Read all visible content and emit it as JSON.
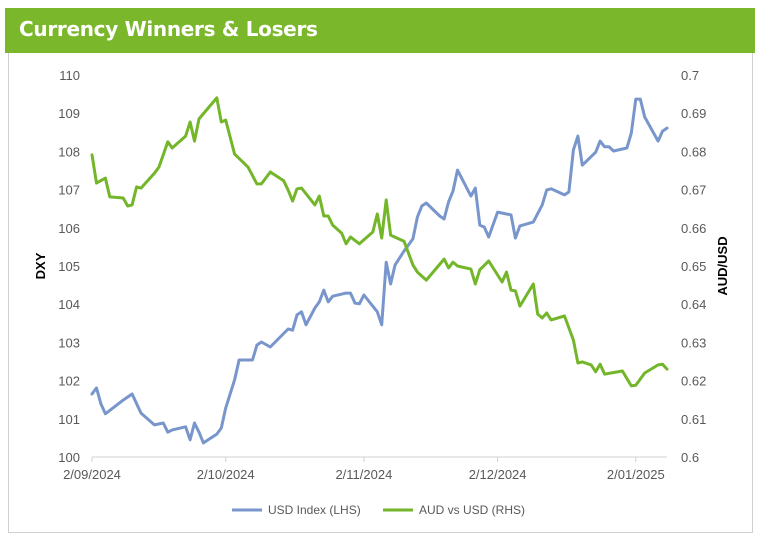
{
  "chart_data": {
    "type": "line",
    "title": "Currency Winners & Losers",
    "xlabel": "",
    "ylabel_left": "DXY",
    "ylabel_right": "AUD/USD",
    "ylim_left": [
      100,
      110
    ],
    "ylim_right": [
      0.6,
      0.7
    ],
    "yticks_left": [
      "100",
      "101",
      "102",
      "103",
      "104",
      "105",
      "106",
      "107",
      "108",
      "109",
      "110"
    ],
    "yticks_right": [
      "0.6",
      "0.61",
      "0.62",
      "0.63",
      "0.64",
      "0.65",
      "0.66",
      "0.67",
      "0.68",
      "0.69",
      "0.7"
    ],
    "xticks": [
      {
        "date": "2024-09-02",
        "label": "2/09/2024"
      },
      {
        "date": "2024-10-02",
        "label": "2/10/2024"
      },
      {
        "date": "2024-11-02",
        "label": "2/11/2024"
      },
      {
        "date": "2024-12-02",
        "label": "2/12/2024"
      },
      {
        "date": "2025-01-02",
        "label": "2/01/2025"
      }
    ],
    "xlim": [
      "2024-09-02",
      "2025-01-09"
    ],
    "grid": false,
    "legend_position": "bottom",
    "series": [
      {
        "name": "USD Index (LHS)",
        "axis": "left",
        "color": "#7896cc",
        "points": [
          [
            "2024-09-02",
            101.65
          ],
          [
            "2024-09-03",
            101.81
          ],
          [
            "2024-09-04",
            101.39
          ],
          [
            "2024-09-05",
            101.13
          ],
          [
            "2024-09-09",
            101.49
          ],
          [
            "2024-09-11",
            101.65
          ],
          [
            "2024-09-13",
            101.15
          ],
          [
            "2024-09-16",
            100.84
          ],
          [
            "2024-09-18",
            100.89
          ],
          [
            "2024-09-19",
            100.65
          ],
          [
            "2024-09-20",
            100.71
          ],
          [
            "2024-09-23",
            100.79
          ],
          [
            "2024-09-24",
            100.45
          ],
          [
            "2024-09-25",
            100.89
          ],
          [
            "2024-09-26",
            100.65
          ],
          [
            "2024-09-27",
            100.37
          ],
          [
            "2024-09-30",
            100.6
          ],
          [
            "2024-10-01",
            100.76
          ],
          [
            "2024-10-02",
            101.28
          ],
          [
            "2024-10-04",
            102.02
          ],
          [
            "2024-10-05",
            102.54
          ],
          [
            "2024-10-08",
            102.54
          ],
          [
            "2024-10-09",
            102.93
          ],
          [
            "2024-10-10",
            103.01
          ],
          [
            "2024-10-12",
            102.88
          ],
          [
            "2024-10-16",
            103.35
          ],
          [
            "2024-10-17",
            103.32
          ],
          [
            "2024-10-18",
            103.72
          ],
          [
            "2024-10-19",
            103.8
          ],
          [
            "2024-10-20",
            103.46
          ],
          [
            "2024-10-22",
            103.9
          ],
          [
            "2024-10-23",
            104.06
          ],
          [
            "2024-10-24",
            104.37
          ],
          [
            "2024-10-25",
            104.06
          ],
          [
            "2024-10-26",
            104.21
          ],
          [
            "2024-10-29",
            104.29
          ],
          [
            "2024-10-30",
            104.29
          ],
          [
            "2024-10-31",
            104.03
          ],
          [
            "2024-11-01",
            104.01
          ],
          [
            "2024-11-02",
            104.24
          ],
          [
            "2024-11-05",
            103.8
          ],
          [
            "2024-11-06",
            103.46
          ],
          [
            "2024-11-07",
            105.1
          ],
          [
            "2024-11-08",
            104.53
          ],
          [
            "2024-11-09",
            105.03
          ],
          [
            "2024-11-11",
            105.39
          ],
          [
            "2024-11-13",
            105.71
          ],
          [
            "2024-11-14",
            106.28
          ],
          [
            "2024-11-15",
            106.57
          ],
          [
            "2024-11-16",
            106.65
          ],
          [
            "2024-11-19",
            106.31
          ],
          [
            "2024-11-20",
            106.23
          ],
          [
            "2024-11-21",
            106.68
          ],
          [
            "2024-11-22",
            106.96
          ],
          [
            "2024-11-23",
            107.51
          ],
          [
            "2024-11-26",
            106.83
          ],
          [
            "2024-11-27",
            107.04
          ],
          [
            "2024-11-28",
            106.07
          ],
          [
            "2024-11-29",
            106.02
          ],
          [
            "2024-11-30",
            105.76
          ],
          [
            "2024-12-02",
            106.41
          ],
          [
            "2024-12-04",
            106.36
          ],
          [
            "2024-12-05",
            106.34
          ],
          [
            "2024-12-06",
            105.73
          ],
          [
            "2024-12-07",
            106.05
          ],
          [
            "2024-12-10",
            106.15
          ],
          [
            "2024-12-12",
            106.6
          ],
          [
            "2024-12-13",
            106.99
          ],
          [
            "2024-12-14",
            107.02
          ],
          [
            "2024-12-17",
            106.86
          ],
          [
            "2024-12-18",
            106.94
          ],
          [
            "2024-12-19",
            108.04
          ],
          [
            "2024-12-20",
            108.4
          ],
          [
            "2024-12-21",
            107.64
          ],
          [
            "2024-12-24",
            107.98
          ],
          [
            "2024-12-25",
            108.27
          ],
          [
            "2024-12-26",
            108.12
          ],
          [
            "2024-12-27",
            108.12
          ],
          [
            "2024-12-28",
            108.01
          ],
          [
            "2024-12-31",
            108.09
          ],
          [
            "2025-01-01",
            108.48
          ],
          [
            "2025-01-02",
            109.37
          ],
          [
            "2025-01-03",
            109.37
          ],
          [
            "2025-01-04",
            108.9
          ],
          [
            "2025-01-07",
            108.27
          ],
          [
            "2025-01-08",
            108.53
          ],
          [
            "2025-01-09",
            108.61
          ]
        ]
      },
      {
        "name": "AUD vs USD (RHS)",
        "axis": "right",
        "color": "#73b62a",
        "points": [
          [
            "2024-09-02",
            0.6791
          ],
          [
            "2024-09-03",
            0.6717
          ],
          [
            "2024-09-05",
            0.673
          ],
          [
            "2024-09-06",
            0.6681
          ],
          [
            "2024-09-09",
            0.6678
          ],
          [
            "2024-09-10",
            0.6657
          ],
          [
            "2024-09-11",
            0.666
          ],
          [
            "2024-09-12",
            0.6707
          ],
          [
            "2024-09-13",
            0.6704
          ],
          [
            "2024-09-16",
            0.6743
          ],
          [
            "2024-09-17",
            0.6759
          ],
          [
            "2024-09-18",
            0.6791
          ],
          [
            "2024-09-19",
            0.6825
          ],
          [
            "2024-09-20",
            0.6809
          ],
          [
            "2024-09-23",
            0.684
          ],
          [
            "2024-09-24",
            0.6877
          ],
          [
            "2024-09-25",
            0.6827
          ],
          [
            "2024-09-26",
            0.6885
          ],
          [
            "2024-09-30",
            0.694
          ],
          [
            "2024-10-01",
            0.6877
          ],
          [
            "2024-10-02",
            0.6882
          ],
          [
            "2024-10-04",
            0.6793
          ],
          [
            "2024-10-07",
            0.6759
          ],
          [
            "2024-10-09",
            0.6715
          ],
          [
            "2024-10-10",
            0.6715
          ],
          [
            "2024-10-12",
            0.6746
          ],
          [
            "2024-10-15",
            0.6723
          ],
          [
            "2024-10-16",
            0.6699
          ],
          [
            "2024-10-17",
            0.667
          ],
          [
            "2024-10-18",
            0.6702
          ],
          [
            "2024-10-19",
            0.6704
          ],
          [
            "2024-10-22",
            0.666
          ],
          [
            "2024-10-23",
            0.6683
          ],
          [
            "2024-10-24",
            0.6631
          ],
          [
            "2024-10-25",
            0.6631
          ],
          [
            "2024-10-26",
            0.6607
          ],
          [
            "2024-10-28",
            0.6586
          ],
          [
            "2024-10-29",
            0.6558
          ],
          [
            "2024-10-30",
            0.6576
          ],
          [
            "2024-11-01",
            0.6558
          ],
          [
            "2024-11-04",
            0.6589
          ],
          [
            "2024-11-05",
            0.6636
          ],
          [
            "2024-11-06",
            0.6573
          ],
          [
            "2024-11-07",
            0.6673
          ],
          [
            "2024-11-08",
            0.6581
          ],
          [
            "2024-11-11",
            0.6565
          ],
          [
            "2024-11-13",
            0.6503
          ],
          [
            "2024-11-14",
            0.6484
          ],
          [
            "2024-11-16",
            0.6463
          ],
          [
            "2024-11-20",
            0.6518
          ],
          [
            "2024-11-21",
            0.6495
          ],
          [
            "2024-11-22",
            0.651
          ],
          [
            "2024-11-23",
            0.65
          ],
          [
            "2024-11-26",
            0.6492
          ],
          [
            "2024-11-27",
            0.6453
          ],
          [
            "2024-11-28",
            0.649
          ],
          [
            "2024-11-30",
            0.6513
          ],
          [
            "2024-12-03",
            0.6458
          ],
          [
            "2024-12-04",
            0.6484
          ],
          [
            "2024-12-05",
            0.6437
          ],
          [
            "2024-12-06",
            0.6435
          ],
          [
            "2024-12-07",
            0.6395
          ],
          [
            "2024-12-10",
            0.6453
          ],
          [
            "2024-12-11",
            0.6374
          ],
          [
            "2024-12-12",
            0.6364
          ],
          [
            "2024-12-13",
            0.6377
          ],
          [
            "2024-12-14",
            0.6359
          ],
          [
            "2024-12-17",
            0.6369
          ],
          [
            "2024-12-19",
            0.6306
          ],
          [
            "2024-12-20",
            0.6246
          ],
          [
            "2024-12-21",
            0.6249
          ],
          [
            "2024-12-23",
            0.6241
          ],
          [
            "2024-12-24",
            0.6223
          ],
          [
            "2024-12-25",
            0.6243
          ],
          [
            "2024-12-26",
            0.6217
          ],
          [
            "2024-12-30",
            0.6225
          ],
          [
            "2025-01-01",
            0.6186
          ],
          [
            "2025-01-02",
            0.6188
          ],
          [
            "2025-01-04",
            0.622
          ],
          [
            "2025-01-07",
            0.6241
          ],
          [
            "2025-01-08",
            0.6243
          ],
          [
            "2025-01-09",
            0.623
          ]
        ]
      }
    ]
  }
}
